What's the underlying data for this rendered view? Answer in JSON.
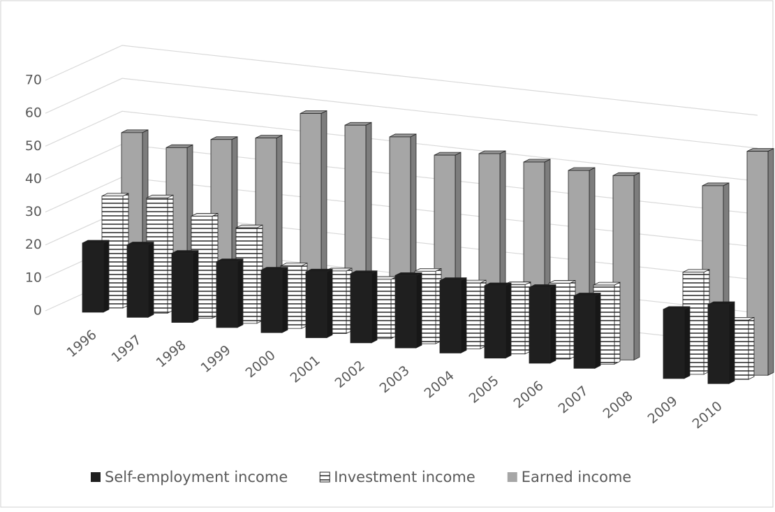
{
  "chart_data": {
    "type": "bar3d",
    "categories": [
      "1996",
      "1997",
      "1998",
      "1999",
      "2000",
      "2001",
      "2002",
      "2003",
      "2004",
      "2005",
      "2006",
      "2007",
      "2008",
      "2009",
      "2010"
    ],
    "series": [
      {
        "name": "Self-employment income",
        "color": "#1f1f1f",
        "hatch": false,
        "values": [
          21,
          22,
          21,
          20,
          19,
          20,
          21,
          22,
          22,
          22,
          23,
          22,
          null,
          21,
          24
        ]
      },
      {
        "name": "Investment income",
        "color": "#ffffff",
        "hatch": true,
        "values": [
          34,
          35,
          31,
          29,
          19,
          19,
          18,
          22,
          20,
          21,
          23,
          24,
          null,
          31,
          18
        ]
      },
      {
        "name": "Earned income",
        "color": "#a6a6a6",
        "hatch": false,
        "values": [
          52,
          49,
          53,
          55,
          64,
          62,
          60,
          56,
          58,
          57,
          56,
          56,
          null,
          56,
          68
        ]
      }
    ],
    "ylim": [
      0,
      70
    ],
    "yticks": [
      0,
      10,
      20,
      30,
      40,
      50,
      60,
      70
    ],
    "grid": true,
    "legend": "bottom"
  }
}
